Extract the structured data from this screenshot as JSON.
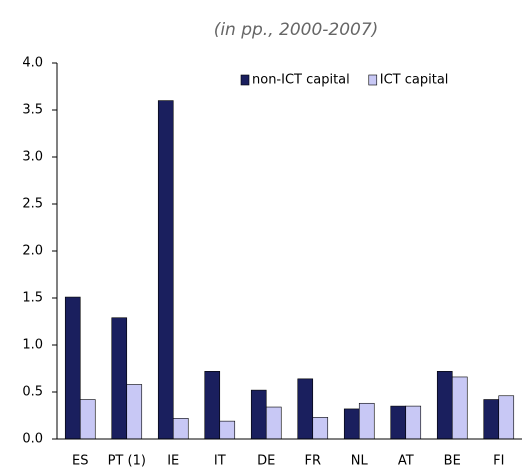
{
  "chart_data": {
    "type": "bar",
    "subtitle": "(in pp., 2000-2007)",
    "categories": [
      "ES",
      "PT (1)",
      "IE",
      "IT",
      "DE",
      "FR",
      "NL",
      "AT",
      "BE",
      "FI"
    ],
    "series": [
      {
        "name": "non-ICT capital",
        "color": "#1a1f5e",
        "values": [
          1.51,
          1.29,
          3.6,
          0.72,
          0.52,
          0.64,
          0.32,
          0.35,
          0.72,
          0.42
        ]
      },
      {
        "name": "ICT capital",
        "color": "#c8c8f5",
        "values": [
          0.42,
          0.58,
          0.22,
          0.19,
          0.34,
          0.23,
          0.38,
          0.35,
          0.66,
          0.46
        ]
      }
    ],
    "ylim": [
      0,
      4
    ],
    "yticks": [
      {
        "value": 0,
        "label": "0.0"
      },
      0.5,
      {
        "value": 1,
        "label": "1.0"
      },
      1.5,
      {
        "value": 2,
        "label": "2.0"
      },
      2.5,
      {
        "value": 3,
        "label": "3.0"
      },
      3.5,
      {
        "value": 4,
        "label": "4.0"
      }
    ],
    "legend": "upper right",
    "grid": false
  }
}
